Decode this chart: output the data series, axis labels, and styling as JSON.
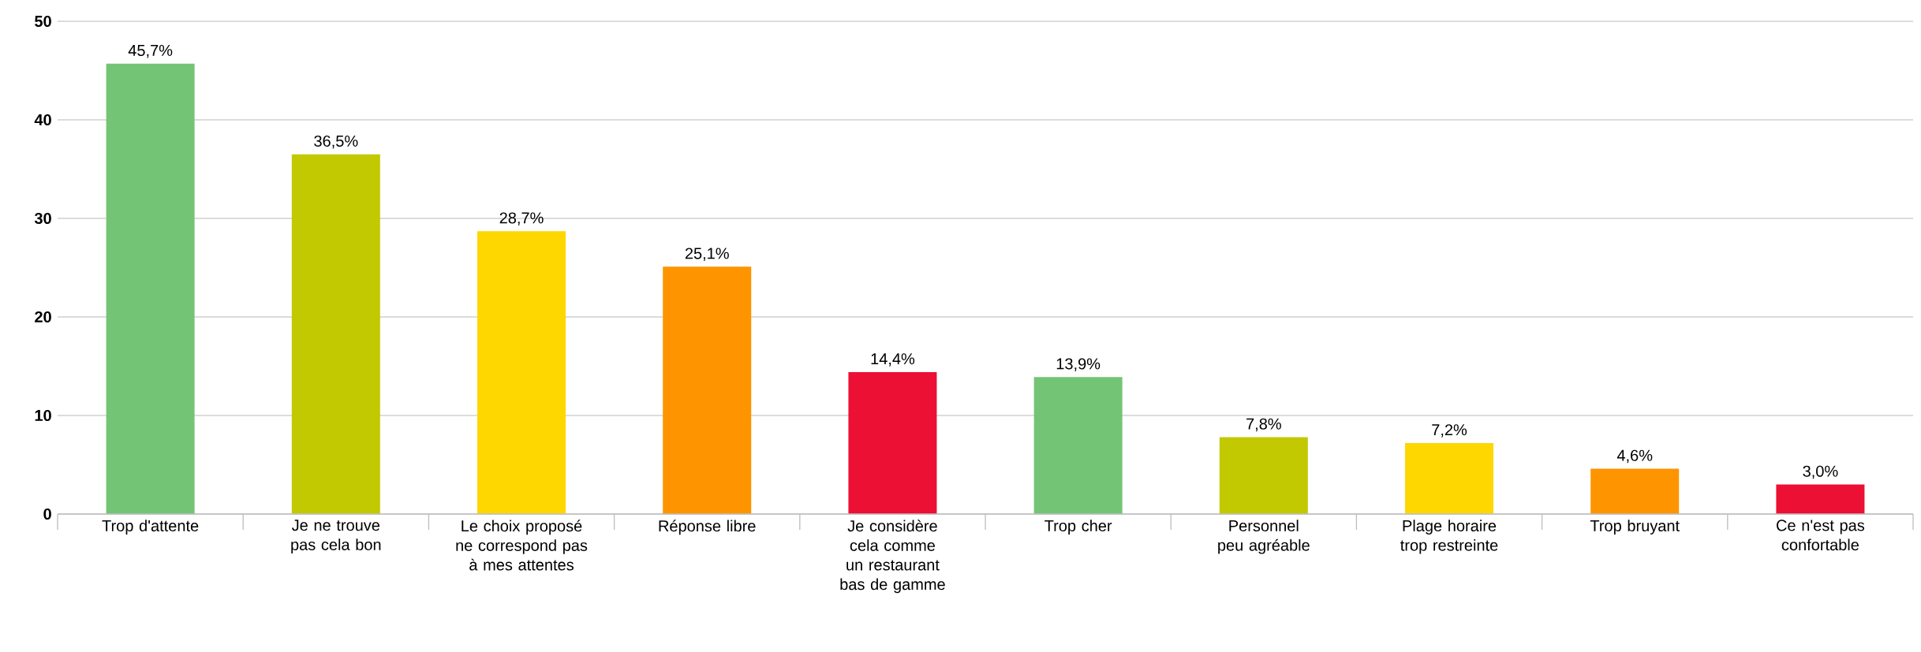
{
  "chart_data": {
    "type": "bar",
    "categories": [
      "Trop d'attente",
      "Je ne trouve pas cela bon",
      "Le choix proposé ne correspond pas à mes attentes",
      "Réponse libre",
      "Je considère cela comme un restaurant bas de gamme",
      "Trop cher",
      "Personnel peu agréable",
      "Plage horaire trop restreinte",
      "Trop bruyant",
      "Ce n'est pas confortable"
    ],
    "values": [
      45.7,
      36.5,
      28.7,
      25.1,
      14.4,
      13.9,
      7.8,
      7.2,
      4.6,
      3.0
    ],
    "value_labels": [
      "45,7%",
      "36,5%",
      "28,7%",
      "25,1%",
      "14,4%",
      "13,9%",
      "7,8%",
      "7,2%",
      "4,6%",
      "3,0%"
    ],
    "colors": [
      "#74c476",
      "#c2c900",
      "#fed700",
      "#fe9400",
      "#ec1034",
      "#74c476",
      "#c2c900",
      "#fed700",
      "#fe9400",
      "#ec1034"
    ],
    "ylim": [
      0,
      50
    ],
    "yticks": [
      0,
      10,
      20,
      30,
      40,
      50
    ],
    "grid": "y"
  }
}
